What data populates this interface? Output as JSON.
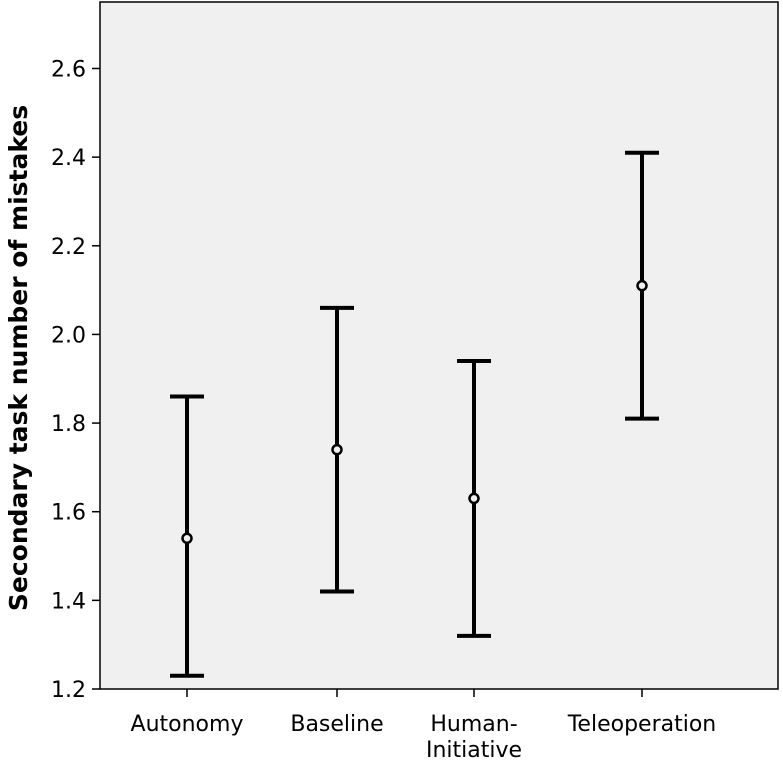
{
  "chart_data": {
    "type": "errorbar",
    "title": "",
    "xlabel": "",
    "ylabel": "Secondary task number of mistakes",
    "categories": [
      [
        "Autonomy"
      ],
      [
        "Baseline"
      ],
      [
        "Human-",
        "Initiative"
      ],
      [
        "Teleoperation"
      ]
    ],
    "means": [
      1.54,
      1.74,
      1.63,
      2.11
    ],
    "lower": [
      1.23,
      1.42,
      1.32,
      1.81
    ],
    "upper": [
      1.86,
      2.06,
      1.94,
      2.41
    ],
    "ylim": [
      1.2,
      2.75
    ],
    "yticks": [
      1.2,
      1.4,
      1.6,
      1.8,
      2.0,
      2.2,
      2.4,
      2.6
    ],
    "ytick_labels": [
      "1.2",
      "1.4",
      "1.6",
      "1.8",
      "2.0",
      "2.2",
      "2.4",
      "2.6"
    ],
    "grid": false,
    "legend": "none",
    "plot_background": "#f0f0f0",
    "mark_color": "#000000"
  }
}
